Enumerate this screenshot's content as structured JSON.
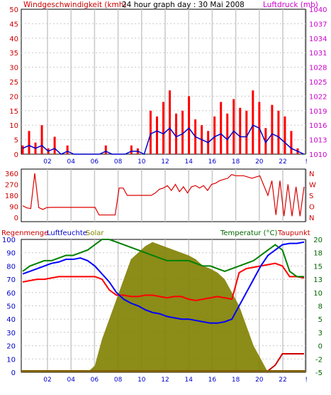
{
  "colors": {
    "wind": "#ff0000",
    "gust": "#ff0000",
    "pressure": "#cc00cc",
    "wind_avg_line": "#0000cc",
    "direction": "#dd0000",
    "rain": "#cc0000",
    "humidity": "#0000ff",
    "solar": "#808000",
    "temperature": "#008000",
    "dewpoint": "#ff0000",
    "frame": "#000000",
    "grid": "#c8c8c8"
  },
  "title_bar": {
    "left_label": "Windgeschwindigkeit (kmh)",
    "center_label": "24 hour graph day : 30 Mai 2008",
    "right_label": "Luftdruck (mb)"
  },
  "lower_header": {
    "rain_label": "Regenmenge",
    "humidity_label": "Luftfeuchte",
    "solar_label": "Solar",
    "temperature_label": "Temperatur (°C)",
    "dewpoint_label": "Taupunkt"
  },
  "chart_data": [
    {
      "type": "line",
      "name_ref": "wind_pressure",
      "x_ticks": [
        "02",
        "04",
        "06",
        "08",
        "10",
        "12",
        "14",
        "16",
        "18",
        "20",
        "22",
        "!"
      ],
      "y_left_ticks": [
        "0",
        "5",
        "10",
        "15",
        "20",
        "25",
        "30",
        "35",
        "40",
        "45",
        "50"
      ],
      "y_right_ticks": [
        "1010",
        "1013",
        "1016",
        "1019",
        "1022",
        "1025",
        "1028",
        "1031",
        "1034",
        "1037",
        "1040"
      ],
      "ylim_left": [
        0,
        50
      ],
      "ylim_right": [
        1010,
        1040
      ],
      "grid": true,
      "series": [
        {
          "key": "wind_gust",
          "values": [
            3,
            8,
            4,
            10,
            2,
            6,
            0,
            3,
            0,
            0,
            0,
            0,
            0,
            3,
            0,
            0,
            0,
            3,
            2,
            0,
            15,
            13,
            18,
            22,
            14,
            15,
            20,
            12,
            10,
            8,
            13,
            18,
            14,
            19,
            16,
            15,
            22,
            18,
            9,
            17,
            15,
            13,
            8,
            2,
            0
          ]
        },
        {
          "key": "wind_avg",
          "values": [
            2,
            3,
            2,
            3,
            1,
            2,
            0,
            1,
            0,
            0,
            0,
            0,
            0,
            1,
            0,
            0,
            0,
            1,
            1,
            0,
            7,
            8,
            7,
            9,
            6,
            7,
            9,
            6,
            5,
            4,
            6,
            7,
            5,
            8,
            6,
            6,
            10,
            9,
            4,
            7,
            6,
            4,
            2,
            1,
            0
          ]
        }
      ]
    },
    {
      "type": "line",
      "name_ref": "wind_direction",
      "y_left_ticks": [
        "360",
        "270",
        "180",
        "90",
        "0"
      ],
      "y_right_ticks": [
        "N",
        "W",
        "S",
        "O",
        "N"
      ],
      "ylim": [
        0,
        360
      ],
      "values": [
        95,
        78,
        72,
        360,
        80,
        65,
        80,
        82,
        82,
        82,
        82,
        82,
        82,
        82,
        82,
        82,
        82,
        82,
        82,
        20,
        20,
        20,
        20,
        20,
        240,
        240,
        180,
        180,
        180,
        180,
        180,
        180,
        180,
        200,
        230,
        240,
        260,
        220,
        270,
        210,
        250,
        200,
        250,
        260,
        240,
        260,
        220,
        270,
        280,
        300,
        310,
        320,
        350,
        340,
        340,
        340,
        330,
        320,
        330,
        340,
        260,
        180,
        300,
        20,
        300,
        10,
        270,
        10,
        250,
        10,
        250
      ]
    },
    {
      "type": "line",
      "name_ref": "rain_hum_solar_temp",
      "y_left_ticks": [
        "0",
        "10",
        "20",
        "30",
        "40",
        "50",
        "60",
        "70",
        "80",
        "90",
        "100"
      ],
      "y_right_ticks": [
        "-5",
        "-2",
        "0",
        "3",
        "5",
        "8",
        "10",
        "13",
        "15",
        "18",
        "20"
      ],
      "ylim_left": [
        0,
        100
      ],
      "ylim_right": [
        -5,
        20
      ],
      "grid": true,
      "series": [
        {
          "key": "humidity",
          "values": [
            74,
            76,
            78,
            80,
            82,
            83,
            85,
            85,
            86,
            84,
            80,
            74,
            68,
            60,
            55,
            52,
            50,
            47,
            45,
            44,
            42,
            41,
            40,
            40,
            39,
            38,
            37,
            37,
            38,
            40,
            50,
            60,
            70,
            80,
            88,
            92,
            96,
            97,
            97,
            98
          ]
        },
        {
          "key": "temperature",
          "values": [
            14,
            15,
            15.5,
            16,
            16,
            16.5,
            17,
            17,
            17.5,
            18,
            19,
            20,
            20,
            19.5,
            19,
            18.5,
            18,
            17.5,
            17,
            16.5,
            16,
            16,
            16,
            16,
            15.5,
            15,
            15,
            14.5,
            14,
            14.5,
            15,
            15.5,
            16,
            17,
            18,
            19,
            18,
            14,
            13,
            13
          ]
        },
        {
          "key": "dewpoint",
          "values": [
            68,
            69,
            70,
            70,
            71,
            72,
            72,
            72,
            72,
            72,
            72,
            70,
            62,
            58,
            58,
            57,
            57,
            58,
            58,
            57,
            56,
            57,
            57,
            55,
            54,
            55,
            56,
            57,
            56,
            55,
            75,
            78,
            79,
            80,
            81,
            82,
            80,
            72,
            72,
            71
          ]
        },
        {
          "key": "solar",
          "values": [
            0,
            0,
            0,
            0,
            0,
            0,
            0,
            0,
            0,
            0,
            5,
            25,
            40,
            55,
            70,
            85,
            90,
            95,
            98,
            96,
            94,
            92,
            90,
            88,
            85,
            80,
            78,
            75,
            70,
            60,
            50,
            35,
            20,
            10,
            0,
            0,
            0,
            0,
            0,
            0
          ]
        },
        {
          "key": "rain",
          "values": [
            0,
            0,
            0,
            0,
            0,
            0,
            0,
            0,
            0,
            0,
            0,
            0,
            0,
            0,
            0,
            0,
            0,
            0,
            0,
            0,
            0,
            0,
            0,
            0,
            0,
            0,
            0,
            0,
            0,
            0,
            0,
            0,
            0,
            0,
            0,
            2,
            6,
            6,
            6,
            6
          ]
        }
      ]
    }
  ]
}
